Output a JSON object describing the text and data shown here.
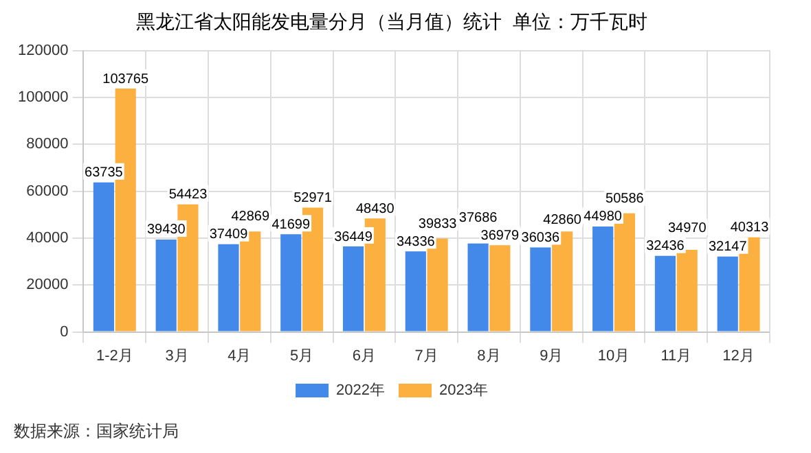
{
  "chart_data": {
    "type": "bar",
    "title": "黑龙江省太阳能发电量分月（当月值）统计  单位：万千瓦时",
    "categories": [
      "1-2月",
      "3月",
      "4月",
      "5月",
      "6月",
      "7月",
      "8月",
      "9月",
      "10月",
      "11月",
      "12月"
    ],
    "series": [
      {
        "name": "2022年",
        "color": "#4289ea",
        "values": [
          63735,
          39430,
          37409,
          41699,
          36449,
          34336,
          37686,
          36036,
          44980,
          32436,
          32147
        ]
      },
      {
        "name": "2023年",
        "color": "#fbb040",
        "values": [
          103765,
          54423,
          42869,
          52971,
          48430,
          39833,
          36979,
          42860,
          50586,
          34970,
          40313
        ]
      }
    ],
    "ylim": [
      0,
      120000
    ],
    "yticks": [
      0,
      20000,
      40000,
      60000,
      80000,
      100000,
      120000
    ],
    "grid": true,
    "legend": "bottom",
    "data_labels": true,
    "annotations": [
      "数据来源：国家统计局"
    ]
  }
}
